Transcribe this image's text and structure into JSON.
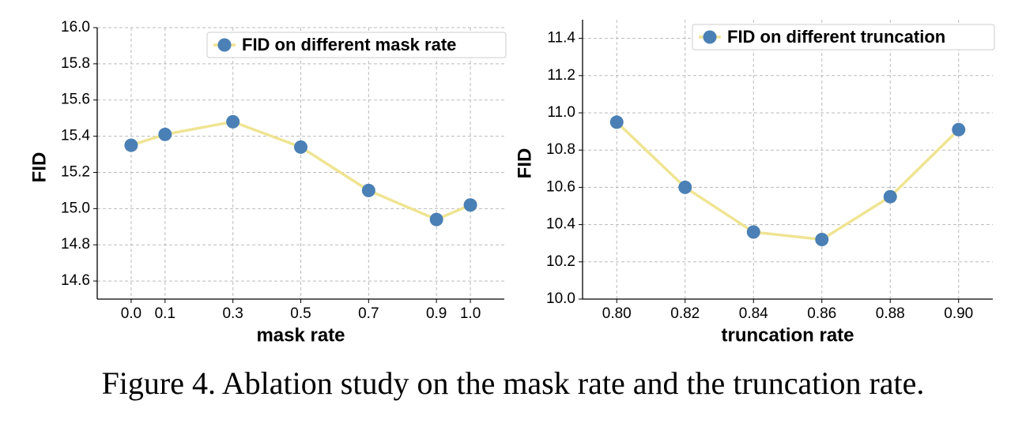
{
  "chart_data": [
    {
      "type": "line",
      "xlabel": "mask rate",
      "ylabel": "FID",
      "x": [
        0.0,
        0.1,
        0.3,
        0.5,
        0.7,
        0.9,
        1.0
      ],
      "series": [
        {
          "name": "FID on different mask rate",
          "color": "#4a80b5",
          "line_color": "#efe492",
          "values": [
            15.35,
            15.41,
            15.48,
            15.34,
            15.1,
            14.94,
            15.02
          ]
        }
      ],
      "xlim": [
        -0.1,
        1.1
      ],
      "xticks": [
        {
          "value": 0,
          "label": "0.0"
        },
        0.1,
        0.3,
        0.5,
        0.7,
        0.9,
        {
          "value": 1,
          "label": "1.0"
        }
      ],
      "ylim": [
        14.5,
        16.0
      ],
      "yticks": [
        14.6,
        14.8,
        {
          "value": 15,
          "label": "15.0"
        },
        15.2,
        15.4,
        15.6,
        15.8,
        {
          "value": 16,
          "label": "16.0"
        }
      ],
      "grid": true,
      "legend": "upper right"
    },
    {
      "type": "line",
      "xlabel": "truncation rate",
      "ylabel": "FID",
      "x": [
        0.8,
        0.82,
        0.84,
        0.86,
        0.88,
        0.9
      ],
      "series": [
        {
          "name": "FID on different truncation",
          "color": "#4a80b5",
          "line_color": "#efe492",
          "values": [
            10.95,
            10.6,
            10.36,
            10.32,
            10.55,
            10.91
          ]
        }
      ],
      "xlim": [
        0.79,
        0.91
      ],
      "xticks": [
        {
          "value": 0.8,
          "label": "0.80"
        },
        0.82,
        0.84,
        0.86,
        0.88,
        {
          "value": 0.9,
          "label": "0.90"
        }
      ],
      "ylim": [
        10.0,
        11.5
      ],
      "yticks": [
        {
          "value": 10,
          "label": "10.0"
        },
        10.2,
        10.4,
        10.6,
        10.8,
        {
          "value": 11,
          "label": "11.0"
        },
        11.2,
        11.4
      ],
      "grid": true,
      "legend": "upper right"
    }
  ],
  "caption": "Figure 4. Ablation study on the mask rate and the truncation rate."
}
